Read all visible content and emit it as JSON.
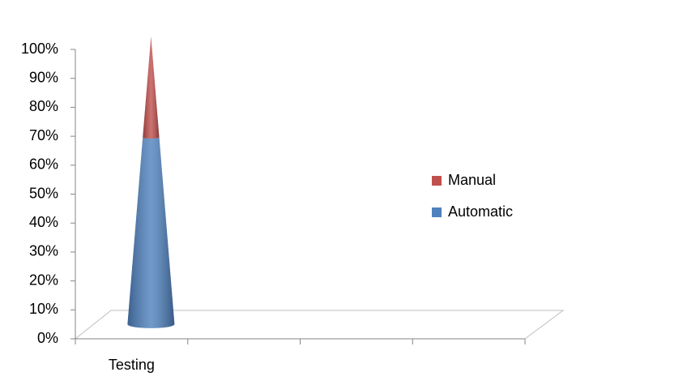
{
  "chart_data": {
    "type": "cone",
    "categories": [
      "Testing",
      null,
      null,
      null
    ],
    "series": [
      {
        "name": "Automatic",
        "color": "#4f81bd",
        "values": [
          65,
          null,
          null,
          null
        ]
      },
      {
        "name": "Manual",
        "color": "#c0504d",
        "values": [
          35,
          null,
          null,
          null
        ]
      }
    ],
    "ylim": [
      0,
      100
    ],
    "yticks": [
      {
        "value": 0,
        "label": "0%"
      },
      {
        "value": 10,
        "label": "10%"
      },
      {
        "value": 20,
        "label": "20%"
      },
      {
        "value": 30,
        "label": "30%"
      },
      {
        "value": 40,
        "label": "40%"
      },
      {
        "value": 50,
        "label": "50%"
      },
      {
        "value": 60,
        "label": "60%"
      },
      {
        "value": 70,
        "label": "70%"
      },
      {
        "value": 80,
        "label": "80%"
      },
      {
        "value": 90,
        "label": "90%"
      },
      {
        "value": 100,
        "label": "100%"
      }
    ],
    "legend": "right",
    "stacked": true
  }
}
